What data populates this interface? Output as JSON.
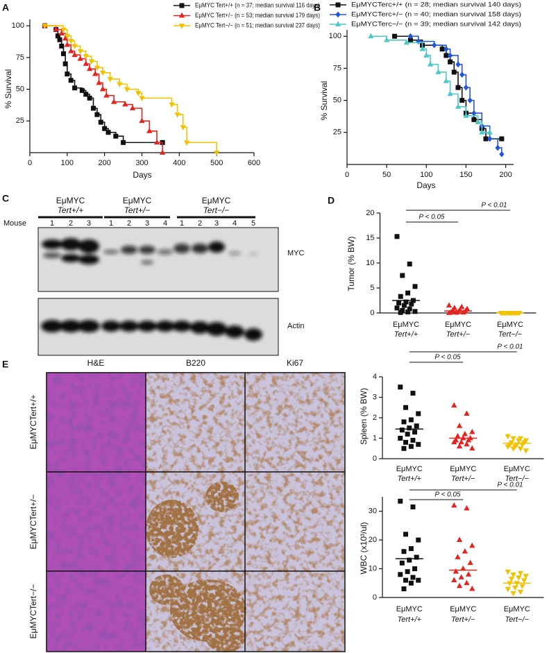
{
  "chart_data": [
    {
      "type": "step",
      "panel_label": "A",
      "xlabel": "Days",
      "ylabel": "% Survival",
      "xlim": [
        0,
        600
      ],
      "xticks": [
        0,
        100,
        200,
        300,
        400,
        500,
        600
      ],
      "ylim": [
        0,
        105
      ],
      "yticks": [
        25,
        50,
        75,
        100
      ],
      "legend": "top-right",
      "series": [
        {
          "name": "EμMYC Tert+/+ (n = 37; median survival 116 days)",
          "color": "#111111",
          "marker": "square",
          "x": [
            40,
            70,
            75,
            80,
            85,
            90,
            95,
            100,
            110,
            120,
            140,
            150,
            160,
            170,
            180,
            190,
            200,
            210,
            230,
            250,
            355
          ],
          "values": [
            100,
            97,
            92,
            89,
            84,
            78,
            70,
            62,
            57,
            51,
            49,
            46,
            43,
            35,
            30,
            24,
            19,
            16,
            13,
            8,
            8
          ]
        },
        {
          "name": "EμMYC Tert+/− (n = 53; median survival 179 days)",
          "color": "#e8231f",
          "marker": "triangle",
          "x": [
            40,
            70,
            85,
            95,
            100,
            110,
            120,
            135,
            150,
            160,
            175,
            185,
            195,
            205,
            225,
            255,
            275,
            300,
            320,
            340,
            355
          ],
          "values": [
            100,
            97,
            94,
            90,
            85,
            80,
            77,
            74,
            70,
            66,
            62,
            55,
            50,
            45,
            40,
            38,
            35,
            25,
            17,
            8,
            0
          ]
        },
        {
          "name": "EμMYC Tert−/− (n = 51; median survival 237 days)",
          "color": "#f2c200",
          "marker": "triangle-down",
          "x": [
            40,
            90,
            100,
            110,
            120,
            135,
            150,
            165,
            180,
            195,
            215,
            240,
            260,
            290,
            300,
            380,
            395,
            410,
            420,
            500
          ],
          "values": [
            100,
            97,
            92,
            88,
            84,
            80,
            76,
            72,
            67,
            63,
            58,
            54,
            50,
            47,
            43,
            38,
            30,
            20,
            8,
            0
          ]
        }
      ]
    },
    {
      "type": "step",
      "panel_label": "B",
      "xlabel": "Days",
      "ylabel": "% Survival",
      "xlim": [
        0,
        210
      ],
      "xticks": [
        0,
        50,
        100,
        150,
        200
      ],
      "ylim": [
        0,
        105
      ],
      "yticks": [
        25,
        50,
        75,
        100
      ],
      "legend": "top-right",
      "series": [
        {
          "name": "EμMYCTerc+/+ (n = 28; median survival 140 days)",
          "color": "#111111",
          "marker": "square",
          "x": [
            60,
            80,
            95,
            120,
            125,
            130,
            135,
            140,
            145,
            150,
            160,
            170,
            175,
            195
          ],
          "values": [
            100,
            97,
            93,
            90,
            85,
            80,
            72,
            60,
            50,
            40,
            35,
            28,
            20,
            20
          ]
        },
        {
          "name": "EμMYCTerc+/− (n = 40; median survival 158 days)",
          "color": "#2255dd",
          "marker": "diamond",
          "x": [
            80,
            90,
            110,
            125,
            130,
            140,
            145,
            150,
            155,
            160,
            170,
            180,
            190,
            195
          ],
          "values": [
            100,
            96,
            93,
            90,
            85,
            78,
            70,
            60,
            50,
            40,
            30,
            20,
            13,
            8
          ]
        },
        {
          "name": "EμMYCTerc−/− (n = 39; median survival 142 days)",
          "color": "#4dc8c8",
          "marker": "triangle",
          "x": [
            30,
            50,
            75,
            95,
            100,
            105,
            115,
            125,
            130,
            140,
            150,
            165,
            170,
            180
          ],
          "values": [
            100,
            97,
            95,
            90,
            85,
            78,
            72,
            65,
            55,
            45,
            38,
            33,
            25,
            25
          ]
        }
      ]
    },
    {
      "type": "dot",
      "panel_label": "D",
      "ylabel": "Tumor (% BW)",
      "categories": [
        [
          "EμMYC",
          "Tert+/+"
        ],
        [
          "EμMYC",
          "Tert+/−"
        ],
        [
          "EμMYC",
          "Tert−/−"
        ]
      ],
      "ylim": [
        0,
        20
      ],
      "yticks": [
        0,
        5,
        10,
        15,
        20
      ],
      "annotations": [
        "P < 0.05",
        "P < 0.01"
      ],
      "groups": [
        {
          "color": "#111111",
          "marker": "square",
          "median": 2.5,
          "values": [
            15.3,
            9.8,
            7.5,
            5.3,
            4.0,
            3.3,
            2.5,
            2.2,
            2.0,
            1.8,
            1.5,
            1.0,
            0.8,
            0.5,
            0.3,
            0.2,
            0.1
          ]
        },
        {
          "color": "#e8231f",
          "marker": "triangle",
          "median": 0.4,
          "values": [
            1.5,
            1.2,
            1.0,
            0.8,
            0.6,
            0.5,
            0.3,
            0.2,
            0.1,
            0.1,
            0.05,
            0
          ]
        },
        {
          "color": "#f2c200",
          "marker": "triangle-down",
          "median": 0,
          "values": [
            0,
            0,
            0,
            0,
            0,
            0,
            0,
            0,
            0,
            0,
            0,
            0
          ]
        }
      ]
    },
    {
      "type": "dot",
      "ylabel": "Spleen (% BW)",
      "categories": [
        [
          "EμMYC",
          "Tert+/+"
        ],
        [
          "EμMYC",
          "Tert+/−"
        ],
        [
          "EμMYC",
          "Tert−/−"
        ]
      ],
      "ylim": [
        0,
        4
      ],
      "yticks": [
        0,
        1,
        2,
        3,
        4
      ],
      "annotations": [
        "P < 0.05",
        "P < 0.01"
      ],
      "groups": [
        {
          "color": "#111111",
          "marker": "square",
          "median": 1.45,
          "values": [
            3.5,
            3.2,
            2.5,
            2.2,
            1.9,
            1.8,
            1.6,
            1.5,
            1.4,
            1.3,
            1.2,
            1.0,
            0.9,
            0.8,
            0.7,
            0.6,
            0.5
          ]
        },
        {
          "color": "#e8231f",
          "marker": "triangle",
          "median": 1.0,
          "values": [
            2.6,
            2.2,
            1.6,
            1.3,
            1.2,
            1.1,
            1.0,
            1.0,
            0.9,
            0.9,
            0.8,
            0.8,
            0.7,
            0.6,
            0.5
          ]
        },
        {
          "color": "#f2c200",
          "marker": "triangle-down",
          "median": 0.75,
          "values": [
            1.1,
            1.0,
            1.0,
            0.9,
            0.9,
            0.8,
            0.8,
            0.7,
            0.7,
            0.7,
            0.6,
            0.6,
            0.5,
            0.5,
            0.4
          ]
        }
      ]
    },
    {
      "type": "dot",
      "ylabel": "WBC (x10³/ul)",
      "categories": [
        [
          "EμMYC",
          "Tert+/+"
        ],
        [
          "EμMYC",
          "Tert+/−"
        ],
        [
          "EμMYC",
          "Tert−/−"
        ]
      ],
      "ylim": [
        0,
        35
      ],
      "yticks": [
        0,
        10,
        20,
        30
      ],
      "annotations": [
        "P < 0.05",
        "P < 0.01"
      ],
      "groups": [
        {
          "color": "#111111",
          "marker": "square",
          "median": 13.5,
          "values": [
            33.5,
            31.5,
            22,
            20,
            17,
            16,
            14,
            13,
            12,
            10,
            9,
            8,
            7,
            6,
            6,
            5,
            3
          ]
        },
        {
          "color": "#e8231f",
          "marker": "triangle",
          "median": 9.5,
          "values": [
            32,
            31,
            20,
            18,
            16,
            14,
            12,
            10,
            9,
            8,
            7,
            6,
            5,
            4,
            3
          ]
        },
        {
          "color": "#f2c200",
          "marker": "triangle-down",
          "median": 5,
          "values": [
            9,
            8.5,
            8,
            7.5,
            7,
            6.5,
            6,
            5,
            5,
            4,
            3.5,
            3,
            2,
            1.5
          ]
        }
      ]
    }
  ],
  "blot": {
    "panel_label": "C",
    "row_label": "Mouse",
    "bands": [
      "MYC",
      "Actin"
    ],
    "groups": [
      {
        "line1": "EμMYC",
        "line2": "Tert+/+",
        "lanes": [
          "1",
          "2",
          "3"
        ]
      },
      {
        "line1": "EμMYC",
        "line2": "Tert+/−",
        "lanes": [
          "1",
          "2",
          "3",
          "4"
        ]
      },
      {
        "line1": "EμMYC",
        "line2": "Tert−/−",
        "lanes": [
          "1",
          "2",
          "3",
          "4",
          "5"
        ]
      }
    ]
  },
  "histology": {
    "panel_label": "E",
    "columns": [
      "H&E",
      "B220",
      "Ki67"
    ],
    "rows": [
      "EμMYCTert+/+",
      "EμMYCTert+/−",
      "EμMYCTert−/−"
    ]
  }
}
